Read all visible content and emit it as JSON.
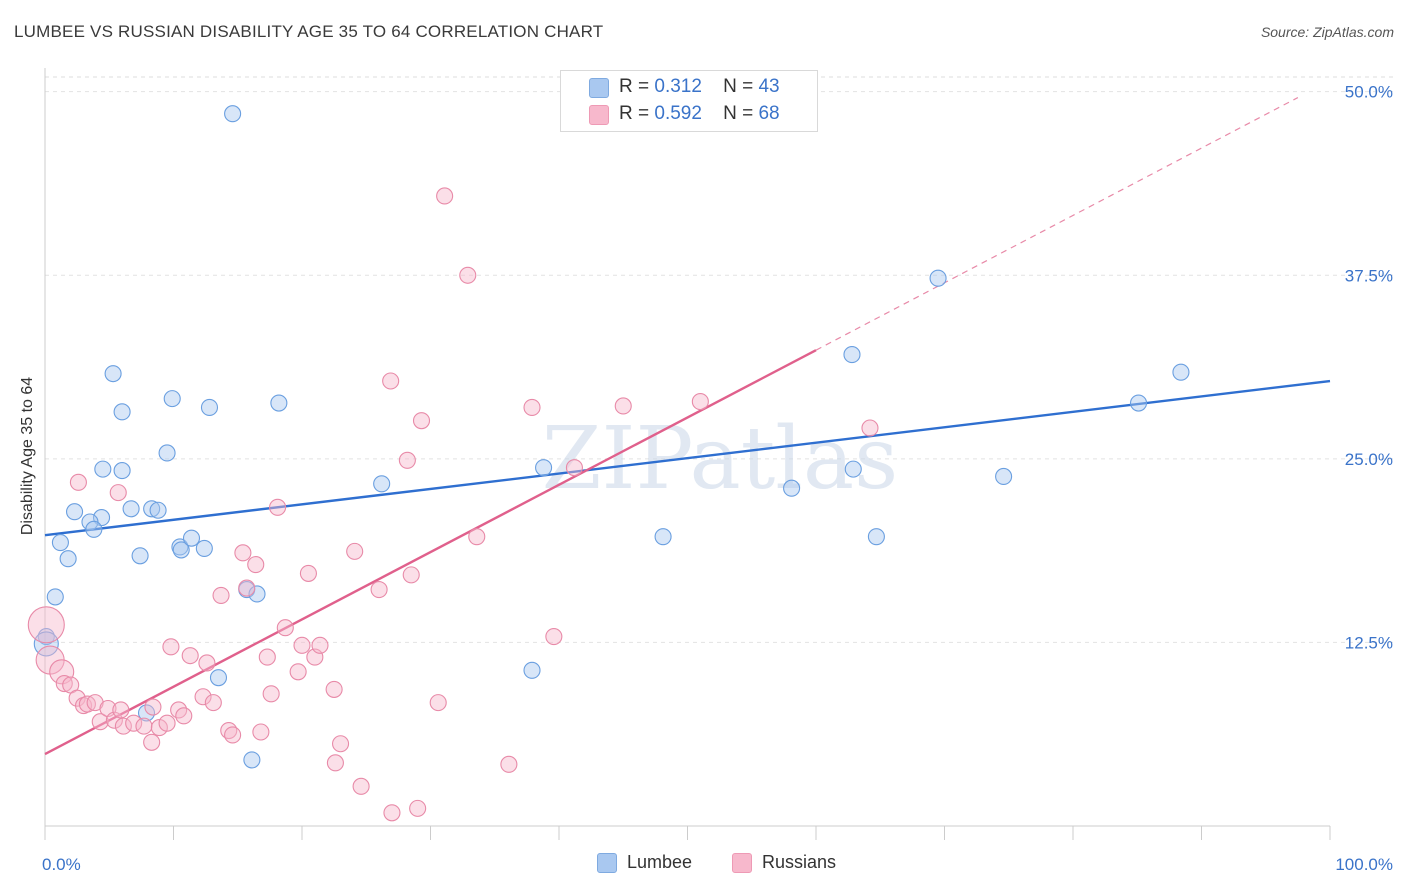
{
  "title": "LUMBEE VS RUSSIAN DISABILITY AGE 35 TO 64 CORRELATION CHART",
  "source": "Source: ZipAtlas.com",
  "watermark": "ZIPatlas",
  "legend_top": [
    {
      "r_label": "R =",
      "r_value": "0.312",
      "n_label": "N =",
      "n_value": "43",
      "color": "#a9c8f0"
    },
    {
      "r_label": "R =",
      "r_value": "0.592",
      "n_label": "N =",
      "n_value": "68",
      "color": "#f7b8cc"
    }
  ],
  "legend_bottom": [
    {
      "label": "Lumbee",
      "color": "#a9c8f0"
    },
    {
      "label": "Russians",
      "color": "#f7b8cc"
    }
  ],
  "chart_data": {
    "type": "scatter",
    "xlabel": "",
    "ylabel": "Disability Age 35 to 64",
    "xlim": [
      0,
      100
    ],
    "ylim": [
      0,
      51
    ],
    "x_tick_labels": [
      "0.0%",
      "100.0%"
    ],
    "y_ticks": [
      12.5,
      25.0,
      37.5,
      50.0
    ],
    "y_tick_labels": [
      "12.5%",
      "25.0%",
      "37.5%",
      "50.0%"
    ],
    "grid": true,
    "series": [
      {
        "name": "Lumbee",
        "color": "#6a9fe0",
        "fill": "#a9c8f0",
        "trend": {
          "x0": 0,
          "y0": 19.8,
          "x1": 100,
          "y1": 30.3
        },
        "points": [
          [
            14.6,
            48.5
          ],
          [
            5.3,
            30.8
          ],
          [
            9.9,
            29.1
          ],
          [
            12.8,
            28.5
          ],
          [
            18.2,
            28.8
          ],
          [
            6.0,
            28.2
          ],
          [
            9.5,
            25.4
          ],
          [
            4.5,
            24.3
          ],
          [
            6.0,
            24.2
          ],
          [
            2.3,
            21.4
          ],
          [
            4.4,
            21.0
          ],
          [
            3.5,
            20.7
          ],
          [
            3.8,
            20.2
          ],
          [
            6.7,
            21.6
          ],
          [
            8.3,
            21.6
          ],
          [
            8.8,
            21.5
          ],
          [
            1.2,
            19.3
          ],
          [
            1.8,
            18.2
          ],
          [
            7.4,
            18.4
          ],
          [
            10.5,
            19.0
          ],
          [
            10.6,
            18.8
          ],
          [
            11.4,
            19.6
          ],
          [
            12.4,
            18.9
          ],
          [
            15.7,
            16.1
          ],
          [
            16.5,
            15.8
          ],
          [
            0.8,
            15.6
          ],
          [
            0.1,
            12.9
          ],
          [
            0.1,
            12.4
          ],
          [
            13.5,
            10.1
          ],
          [
            7.9,
            7.7
          ],
          [
            16.1,
            4.5
          ],
          [
            26.2,
            23.3
          ],
          [
            38.8,
            24.4
          ],
          [
            48.1,
            19.7
          ],
          [
            58.1,
            23.0
          ],
          [
            62.8,
            32.1
          ],
          [
            62.9,
            24.3
          ],
          [
            64.7,
            19.7
          ],
          [
            69.5,
            37.3
          ],
          [
            74.6,
            23.8
          ],
          [
            85.1,
            28.8
          ],
          [
            88.4,
            30.9
          ],
          [
            37.9,
            10.6
          ]
        ]
      },
      {
        "name": "Russians",
        "color": "#e88aa8",
        "fill": "#f7b8cc",
        "trend": {
          "x0": 0,
          "y0": 4.9,
          "x1": 60,
          "y1": 32.4
        },
        "trend_ext": {
          "x0": 60,
          "y0": 32.4,
          "x1": 97.5,
          "y1": 49.6
        },
        "points": [
          [
            0.1,
            13.7
          ],
          [
            0.4,
            11.3
          ],
          [
            1.3,
            10.5
          ],
          [
            1.5,
            9.7
          ],
          [
            2.0,
            9.6
          ],
          [
            2.5,
            8.7
          ],
          [
            3.0,
            8.2
          ],
          [
            3.3,
            8.3
          ],
          [
            3.9,
            8.4
          ],
          [
            4.3,
            7.1
          ],
          [
            4.9,
            8.0
          ],
          [
            5.4,
            7.2
          ],
          [
            5.9,
            7.9
          ],
          [
            6.1,
            6.8
          ],
          [
            6.9,
            7.0
          ],
          [
            7.7,
            6.8
          ],
          [
            8.3,
            5.7
          ],
          [
            8.4,
            8.1
          ],
          [
            8.9,
            6.7
          ],
          [
            9.5,
            7.0
          ],
          [
            9.8,
            12.2
          ],
          [
            10.4,
            7.9
          ],
          [
            10.8,
            7.5
          ],
          [
            11.3,
            11.6
          ],
          [
            12.3,
            8.8
          ],
          [
            12.6,
            11.1
          ],
          [
            13.1,
            8.4
          ],
          [
            13.7,
            15.7
          ],
          [
            14.3,
            6.5
          ],
          [
            14.6,
            6.2
          ],
          [
            15.4,
            18.6
          ],
          [
            15.7,
            16.2
          ],
          [
            16.4,
            17.8
          ],
          [
            16.8,
            6.4
          ],
          [
            17.3,
            11.5
          ],
          [
            17.6,
            9.0
          ],
          [
            18.1,
            21.7
          ],
          [
            18.7,
            13.5
          ],
          [
            19.7,
            10.5
          ],
          [
            20.0,
            12.3
          ],
          [
            20.5,
            17.2
          ],
          [
            21.0,
            11.5
          ],
          [
            21.4,
            12.3
          ],
          [
            22.5,
            9.3
          ],
          [
            22.6,
            4.3
          ],
          [
            23.0,
            5.6
          ],
          [
            24.1,
            18.7
          ],
          [
            24.6,
            2.7
          ],
          [
            26.0,
            16.1
          ],
          [
            26.9,
            30.3
          ],
          [
            27.0,
            0.9
          ],
          [
            28.2,
            24.9
          ],
          [
            28.5,
            17.1
          ],
          [
            29.0,
            1.2
          ],
          [
            29.3,
            27.6
          ],
          [
            30.6,
            8.4
          ],
          [
            31.1,
            42.9
          ],
          [
            32.9,
            37.5
          ],
          [
            33.6,
            19.7
          ],
          [
            36.1,
            4.2
          ],
          [
            37.9,
            28.5
          ],
          [
            39.6,
            12.9
          ],
          [
            41.2,
            24.4
          ],
          [
            45.0,
            28.6
          ],
          [
            51.0,
            28.9
          ],
          [
            64.2,
            27.1
          ],
          [
            5.7,
            22.7
          ],
          [
            2.6,
            23.4
          ]
        ]
      }
    ]
  }
}
